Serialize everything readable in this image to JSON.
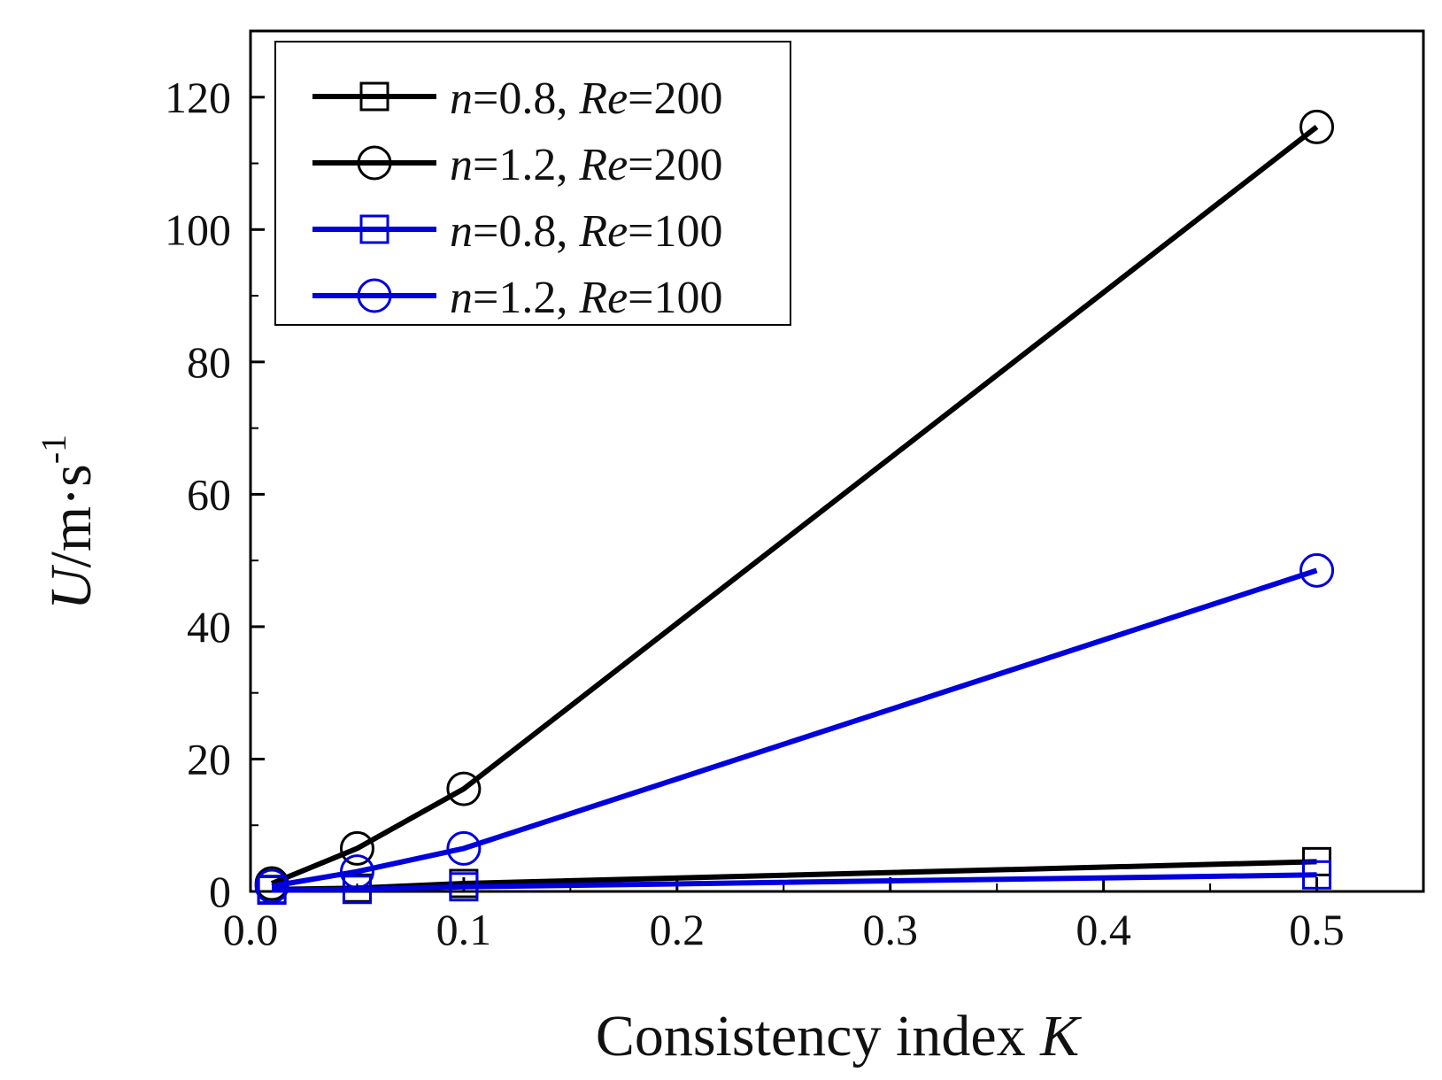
{
  "chart_data": {
    "type": "line",
    "title": "",
    "xlabel": {
      "main": "Consistency index ",
      "italic": "K"
    },
    "ylabel": {
      "italic": "U",
      "main": "/m·s",
      "sup": "-1"
    },
    "xlim": [
      0.0,
      0.55
    ],
    "ylim": [
      0,
      130
    ],
    "xticks": [
      0.0,
      0.1,
      0.2,
      0.3,
      0.4,
      0.5
    ],
    "xtick_labels": [
      "0.0",
      "0.1",
      "0.2",
      "0.3",
      "0.4",
      "0.5"
    ],
    "yticks": [
      0,
      20,
      40,
      60,
      80,
      100,
      120
    ],
    "ytick_labels": [
      "0",
      "20",
      "40",
      "60",
      "80",
      "100",
      "120"
    ],
    "grid": false,
    "legend_position": "top-left",
    "x": [
      0.01,
      0.05,
      0.1,
      0.5
    ],
    "series": [
      {
        "name": "n=0.8, Re=200",
        "n_label": "n",
        "n_value": "=0.8, ",
        "re_label": "Re",
        "re_value": "=200",
        "color": "#000000",
        "marker": "square",
        "values": [
          0.3,
          0.5,
          1.2,
          4.5
        ]
      },
      {
        "name": "n=1.2, Re=200",
        "n_label": "n",
        "n_value": "=1.2, ",
        "re_label": "Re",
        "re_value": "=200",
        "color": "#000000",
        "marker": "circle",
        "values": [
          1.2,
          6.5,
          15.5,
          115.5
        ]
      },
      {
        "name": "n=0.8, Re=100",
        "n_label": "n",
        "n_value": "=0.8, ",
        "re_label": "Re",
        "re_value": "=100",
        "color": "#0000dd",
        "marker": "square",
        "values": [
          0.2,
          0.3,
          0.7,
          2.5
        ]
      },
      {
        "name": "n=1.2, Re=100",
        "n_label": "n",
        "n_value": "=1.2, ",
        "re_label": "Re",
        "re_value": "=100",
        "color": "#0000dd",
        "marker": "circle",
        "values": [
          0.8,
          3.0,
          6.5,
          48.5
        ]
      }
    ]
  }
}
